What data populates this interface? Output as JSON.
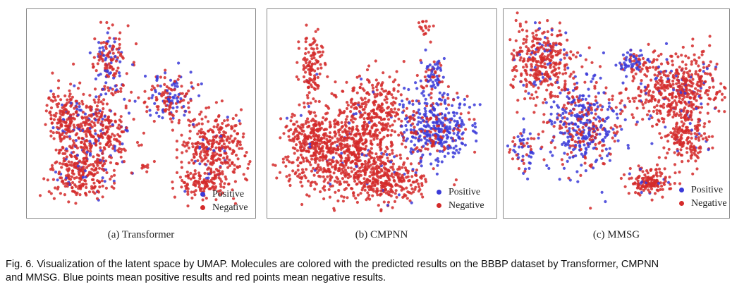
{
  "chart_data": [
    {
      "type": "scatter",
      "title": "",
      "caption": "(a) Transformer",
      "legend": [
        {
          "label": "Positive",
          "color": "#3a3ad8"
        },
        {
          "label": "Negative",
          "color": "#d42a2a"
        }
      ],
      "legend_position": "bottom-right",
      "axes": "hidden",
      "grid": false
    },
    {
      "type": "scatter",
      "title": "",
      "caption": "(b) CMPNN",
      "legend": [
        {
          "label": "Positive",
          "color": "#3a3ad8"
        },
        {
          "label": "Negative",
          "color": "#d42a2a"
        }
      ],
      "legend_position": "bottom-right",
      "axes": "hidden",
      "grid": false
    },
    {
      "type": "scatter",
      "title": "",
      "caption": "(c) MMSG",
      "legend": [
        {
          "label": "Positive",
          "color": "#3a3ad8"
        },
        {
          "label": "Negative",
          "color": "#d42a2a"
        }
      ],
      "legend_position": "bottom-right",
      "axes": "hidden",
      "grid": false
    }
  ],
  "figure_caption": {
    "line1": "Fig. 6. Visualization of the latent space by UMAP. Molecules are colored with the predicted results on the BBBP dataset by Transformer, CMPNN",
    "line2": "and MMSG. Blue points mean positive results and red points mean negative results."
  },
  "colors": {
    "positive": "#3a3ad8",
    "negative": "#d42a2a",
    "frame": "#888888"
  }
}
